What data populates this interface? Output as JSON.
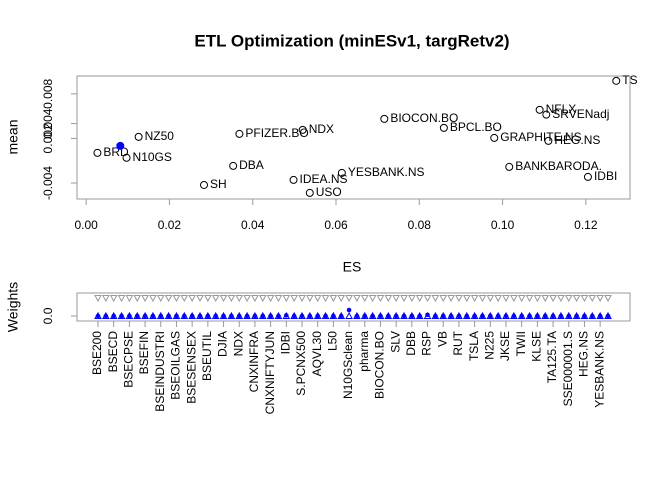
{
  "chart_data": [
    {
      "type": "scatter",
      "title": "ETL Optimization (minESv1, targRetv2)",
      "xlabel": "ES",
      "ylabel": "mean",
      "labels": [
        "TS",
        "NFLX",
        "SRVENadj",
        "BIOCON.BO",
        "BPCL.BO",
        "GRAPHITE.NS",
        "HEG.NS",
        "IDBI",
        "BANKBARODA.",
        "NZ50",
        "BRD",
        "N10GS",
        "SH",
        "DBA",
        "IDEA.NS",
        "USO",
        "PFIZER.BO",
        "NDX",
        "YESBANK.NS",
        null
      ],
      "x": [
        0.1273,
        0.1089,
        0.1105,
        0.0716,
        0.0859,
        0.098,
        0.111,
        0.1205,
        0.1016,
        0.0126,
        0.0027,
        0.0097,
        0.0283,
        0.0353,
        0.0498,
        0.0537,
        0.0368,
        0.052,
        0.0614,
        0.0082
      ],
      "values": [
        0.00975,
        0.00585,
        0.0052,
        0.00463,
        0.00342,
        0.00207,
        0.00167,
        -0.00318,
        -0.00183,
        0.00221,
        5e-05,
        -0.0006,
        -0.00426,
        -0.0017,
        -0.00358,
        -0.00533,
        0.00261,
        0.00315,
        -0.00264,
        0.001
      ],
      "colors": [
        "#000000",
        "#000000",
        "#000000",
        "#000000",
        "#000000",
        "#000000",
        "#000000",
        "#000000",
        "#000000",
        "#000000",
        "#000000",
        "#000000",
        "#000000",
        "#000000",
        "#000000",
        "#000000",
        "#000000",
        "#000000",
        "#000000",
        "#0000ff"
      ],
      "xlim": [
        -0.0022,
        0.1306
      ],
      "ylim": [
        -0.00615,
        0.0104
      ],
      "xticks": [
        {
          "value": 0,
          "label": "0.00"
        },
        {
          "value": 0.02,
          "label": "0.02"
        },
        {
          "value": 0.04,
          "label": "0.04"
        },
        {
          "value": 0.06,
          "label": "0.06"
        },
        {
          "value": 0.08,
          "label": "0.08"
        },
        {
          "value": 0.1,
          "label": "0.10"
        },
        {
          "value": 0.12,
          "label": "0.12"
        }
      ],
      "yticks": [
        -0.004,
        0.002,
        0.004,
        0.008
      ]
    },
    {
      "type": "weights",
      "ylabel": "Weights",
      "categories": [
        "BSE200",
        null,
        "BSECD",
        null,
        "BSECPSE",
        null,
        "BSEFIN",
        null,
        "BSEINDUSTRI",
        null,
        "BSEOILGAS",
        null,
        "BSESENSEX",
        null,
        "BSEUTIL",
        null,
        "DJIA",
        null,
        "NDX",
        null,
        "CNXINFRA",
        null,
        "CNXNIFTYJUN",
        null,
        "IDBI",
        null,
        "S.PCNX500",
        null,
        "AQVL30",
        null,
        "L50",
        null,
        "N10GSclean",
        null,
        "pharma",
        null,
        "BIOCON.BO",
        null,
        "SLV",
        null,
        "DBB",
        null,
        "RSP",
        null,
        "VB",
        null,
        "RUT",
        null,
        "TSLA",
        null,
        "N225",
        null,
        "JKSE",
        null,
        "TWII",
        null,
        "KLSE",
        null,
        "TA125.TA",
        null,
        "SSE000001.S",
        null,
        "HEG.NS",
        null,
        "YESBANK.NS",
        null
      ],
      "series": [
        {
          "color": "#0000ff",
          "marker": "circle",
          "values": [
            0,
            0,
            0,
            0,
            0,
            0,
            0,
            0,
            0,
            0,
            0,
            0,
            0,
            0,
            0,
            0,
            0,
            0,
            0,
            0,
            0,
            0,
            0,
            0,
            0.03,
            0,
            0,
            0,
            0,
            0,
            0,
            0,
            0.33,
            0,
            0,
            0,
            0,
            0,
            0,
            0,
            0,
            0,
            0.06,
            0,
            0,
            0,
            0,
            0,
            0,
            0,
            0,
            0,
            0,
            0,
            0,
            0,
            0,
            0,
            0,
            0,
            0,
            0,
            0,
            0,
            0,
            0
          ]
        },
        {
          "color": "#0000ff",
          "marker": "triangle",
          "values": [
            0,
            0,
            0,
            0,
            0,
            0,
            0,
            0,
            0,
            0,
            0,
            0,
            0,
            0,
            0,
            0,
            0,
            0,
            0,
            0,
            0,
            0,
            0,
            0,
            0,
            0,
            0,
            0,
            0,
            0,
            0,
            0,
            0,
            0,
            0,
            0,
            0,
            0,
            0,
            0,
            0,
            0,
            0,
            0,
            0,
            0,
            0,
            0,
            0,
            0,
            0,
            0,
            0,
            0,
            0,
            0,
            0,
            0,
            0,
            0,
            0,
            0,
            0,
            0,
            0,
            0
          ]
        },
        {
          "color": "#999999",
          "marker": "triangle-down",
          "values": [
            1,
            1,
            1,
            1,
            1,
            1,
            1,
            1,
            1,
            1,
            1,
            1,
            1,
            1,
            1,
            1,
            1,
            1,
            1,
            1,
            1,
            1,
            1,
            1,
            1,
            1,
            1,
            1,
            1,
            1,
            1,
            1,
            1,
            1,
            1,
            1,
            1,
            1,
            1,
            1,
            1,
            1,
            1,
            1,
            1,
            1,
            1,
            1,
            1,
            1,
            1,
            1,
            1,
            1,
            1,
            1,
            1,
            1,
            1,
            1,
            1,
            1,
            1,
            1,
            1,
            1
          ]
        }
      ],
      "ylim": [
        -0.28,
        1.28
      ],
      "yticks": [
        {
          "value": 0,
          "label": "0.0"
        }
      ]
    }
  ]
}
